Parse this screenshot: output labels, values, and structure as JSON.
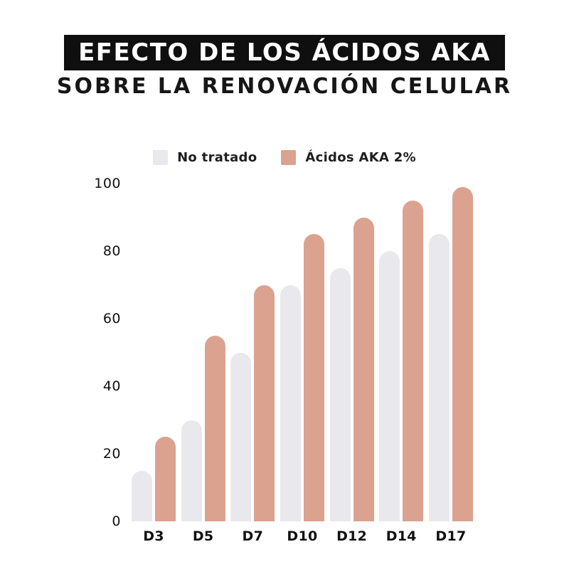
{
  "header": {
    "title": "EFECTO DE LOS ÁCIDOS AKA",
    "subtitle": "SOBRE LA RENOVACIÓN CELULAR"
  },
  "colors": {
    "untreated_bar": "#e9e8ec",
    "treated_bar": "#dba290",
    "title_band_background": "#0f0f0f",
    "title_text": "#ffffff",
    "body_text": "#161616",
    "page_background": "#ffffff"
  },
  "chart_data": {
    "type": "bar",
    "title": "EFECTO DE LOS ÁCIDOS AKA SOBRE LA RENOVACIÓN CELULAR",
    "categories": [
      "D3",
      "D5",
      "D7",
      "D10",
      "D12",
      "D14",
      "D17"
    ],
    "series": [
      {
        "name": "No tratado",
        "color": "#e9e8ec",
        "values": [
          15,
          30,
          50,
          70,
          75,
          80,
          85
        ]
      },
      {
        "name": "Ácidos AKA 2%",
        "color": "#dba290",
        "values": [
          25,
          55,
          70,
          85,
          90,
          95,
          99
        ]
      }
    ],
    "xlabel": "",
    "ylabel": "",
    "ylim": [
      0,
      100
    ],
    "yticks": [
      0,
      20,
      40,
      60,
      80,
      100
    ],
    "grid": false,
    "legend_position": "top-center",
    "bar_corner": "rounded-top"
  }
}
